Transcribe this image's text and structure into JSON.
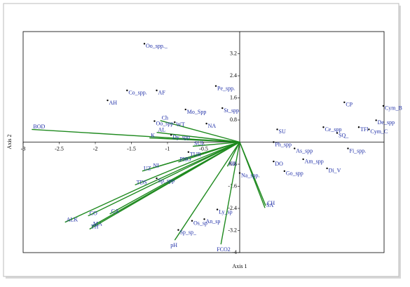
{
  "chart_data": {
    "type": "biplot",
    "xlabel": "Axis 1",
    "ylabel": "Axis 2",
    "xlim": [
      -3,
      2
    ],
    "ylim": [
      -4,
      4
    ],
    "xticks": [
      -3,
      -2.5,
      -2,
      -1.5,
      -1,
      -0.5
    ],
    "yticks": [
      3.2,
      2.4,
      1.6,
      0.8,
      -0.8,
      -1.6,
      -2.4,
      -3.2,
      -4
    ],
    "point_color": "#1f2fa8",
    "vector_color": "#1f8a1f",
    "points": {
      "labels": [
        "Oo_spp._",
        "AH",
        "Co_spp.",
        "AF",
        "Pe_spp.",
        "St_spp.",
        "Mo_Spp",
        "Oo_spp",
        "WT",
        "NA",
        "Dy_spp",
        "TUR",
        "Sp_spp",
        "Na_spp.",
        "Ly_sp",
        "Os_sp",
        "An_sp",
        "Sp_sp_",
        "SU",
        "CP",
        "Cym_B",
        "De_spp",
        "TFl",
        "Cym_C",
        "SQ_",
        "Ce_spp",
        "Fi_spp.",
        "As_spp",
        "Am_spp",
        "Di_V",
        "Go_spp",
        "Ph_spp",
        "DO"
      ],
      "x": [
        -1.32,
        -1.83,
        -1.56,
        -1.15,
        -0.33,
        -0.24,
        -0.75,
        -1.18,
        -0.9,
        -0.46,
        -0.95,
        -0.71,
        -1.15,
        0,
        -0.31,
        -0.66,
        -0.49,
        -0.85,
        0.52,
        1.45,
        1.99,
        1.89,
        1.65,
        1.79,
        1.35,
        1.16,
        1.5,
        0.76,
        0.88,
        1.21,
        0.62,
        0.47,
        0.47
      ],
      "y": [
        3.56,
        1.51,
        1.87,
        1.87,
        2.03,
        1.23,
        1.18,
        0.76,
        0.72,
        0.67,
        0.26,
        -0.36,
        -1.31,
        -1.12,
        -2.44,
        -2.85,
        -2.79,
        -3.18,
        0.46,
        1.44,
        1.31,
        0.79,
        0.54,
        0.46,
        0.33,
        0.54,
        -0.23,
        -0.23,
        -0.62,
        -0.95,
        -1.05,
        0,
        -0.7
      ]
    },
    "vectors": {
      "labels": [
        "BOD",
        "ALK",
        "CO",
        "MA",
        "TH",
        "CA",
        "TDS",
        "UZ",
        "NI",
        "PHO",
        "SUL",
        "K",
        "AL",
        "Ch",
        "pH",
        "FCO2",
        "CH",
        "SA",
        "NR"
      ],
      "x": [
        -2.88,
        -2.42,
        -2.1,
        -2.05,
        -2.08,
        -1.8,
        -1.45,
        -1.35,
        -1.22,
        -0.85,
        -0.65,
        -1.25,
        -1.15,
        -1.1,
        -0.9,
        -0.26,
        0.36,
        0.35,
        -0.17
      ],
      "y": [
        0.46,
        -2.9,
        -2.67,
        -3.05,
        -3.15,
        -2.6,
        -1.55,
        -1.05,
        -0.95,
        -0.72,
        -0.15,
        0.15,
        0.35,
        0.78,
        -3.55,
        -3.7,
        -2.3,
        -2.38,
        -0.88
      ]
    }
  }
}
